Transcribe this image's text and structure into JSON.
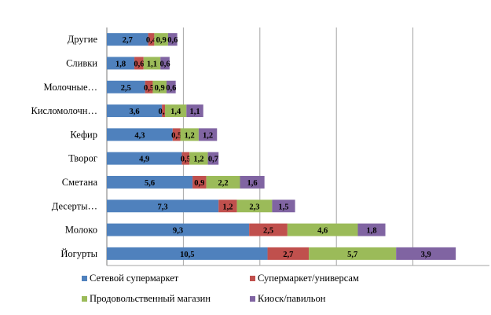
{
  "chart_data": {
    "type": "bar",
    "orientation": "horizontal",
    "stacked": true,
    "categories": [
      "Йогурты",
      "Молоко",
      "Десерты…",
      "Сметана",
      "Творог",
      "Кефир",
      "Кисломолочн…",
      "Молочные…",
      "Сливки",
      "Другие"
    ],
    "series": [
      {
        "name": "Сетевой супермаркет",
        "color": "#4F81BD",
        "values": [
          10.5,
          9.3,
          7.3,
          5.6,
          4.9,
          4.3,
          3.6,
          2.5,
          1.8,
          2.7
        ],
        "labels": [
          "10,5",
          "9,3",
          "7,3",
          "5,6",
          "4,9",
          "4,3",
          "3,6",
          "2,5",
          "1,8",
          "2,7"
        ]
      },
      {
        "name": "Супермаркет/универсам",
        "color": "#C0504D",
        "values": [
          2.7,
          2.5,
          1.2,
          0.9,
          0.5,
          0.5,
          0.2,
          0.5,
          0.6,
          0.4
        ],
        "labels": [
          "2,7",
          "2,5",
          "1,2",
          "0,9",
          "0,5",
          "0,5",
          "0,2",
          "0,5",
          "0,6",
          "0,4"
        ]
      },
      {
        "name": "Продовольственный магазин",
        "color": "#9BBB59",
        "values": [
          5.7,
          4.6,
          2.3,
          2.2,
          1.2,
          1.2,
          1.4,
          0.9,
          1.1,
          0.9
        ],
        "labels": [
          "5,7",
          "4,6",
          "2,3",
          "2,2",
          "1,2",
          "1,2",
          "1,4",
          "0,9",
          "1,1",
          "0,9"
        ]
      },
      {
        "name": "Киоск/павильон",
        "color": "#8064A2",
        "values": [
          3.9,
          1.8,
          1.5,
          1.6,
          0.7,
          1.2,
          1.1,
          0.6,
          0.6,
          0.6
        ],
        "labels": [
          "3,9",
          "1,8",
          "1,5",
          "1,6",
          "0,7",
          "1,2",
          "1,1",
          "0,6",
          "0,6",
          "0,6"
        ]
      }
    ],
    "xlim": [
      0,
      25
    ],
    "grid": "vertical",
    "legend": "bottom"
  }
}
